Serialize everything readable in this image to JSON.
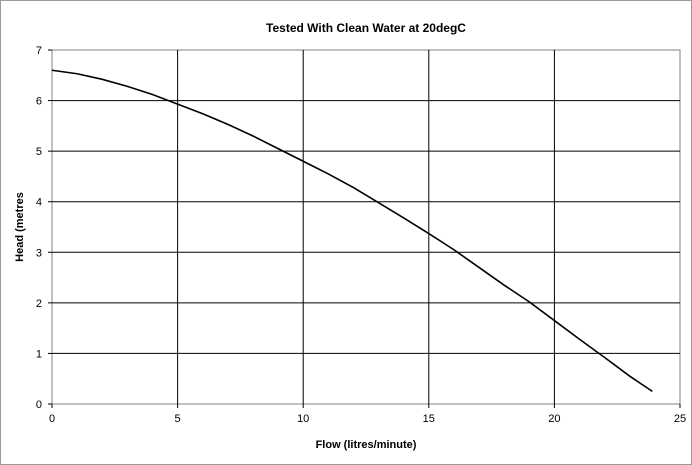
{
  "chart_data": {
    "type": "line",
    "title": "Tested With Clean Water at 20degC",
    "xlabel": "Flow (litres/minute)",
    "ylabel": "Head (metres",
    "xlim": [
      0,
      25
    ],
    "ylim": [
      0,
      7
    ],
    "x_ticks": [
      "0",
      "5",
      "10",
      "15",
      "20",
      "25"
    ],
    "y_ticks": [
      "0",
      "1",
      "2",
      "3",
      "4",
      "5",
      "6",
      "7"
    ],
    "grid": true,
    "legend": "none",
    "series": [
      {
        "x": [
          0,
          1,
          2,
          3,
          4,
          5,
          6,
          7,
          8,
          9,
          10,
          11,
          12,
          13,
          14,
          15,
          16,
          17,
          18,
          19,
          20,
          21,
          22,
          23,
          23.9
        ],
        "y": [
          6.6,
          6.53,
          6.42,
          6.28,
          6.12,
          5.93,
          5.74,
          5.53,
          5.3,
          5.05,
          4.8,
          4.55,
          4.28,
          3.98,
          3.68,
          3.37,
          3.05,
          2.7,
          2.35,
          2.02,
          1.65,
          1.28,
          0.92,
          0.55,
          0.25
        ],
        "color": "#000000"
      }
    ]
  }
}
